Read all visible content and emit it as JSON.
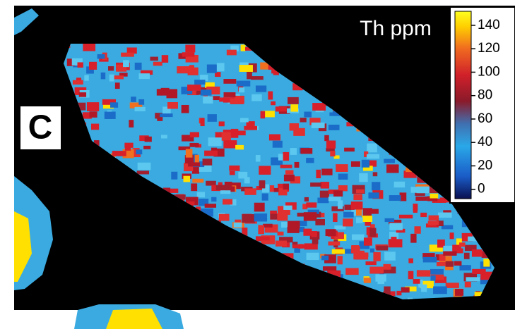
{
  "panel_label": "C",
  "colorbar": {
    "title": "Th ppm",
    "lim": [
      -8,
      152
    ],
    "ticks": [
      0,
      20,
      40,
      60,
      80,
      100,
      120,
      140
    ]
  }
}
